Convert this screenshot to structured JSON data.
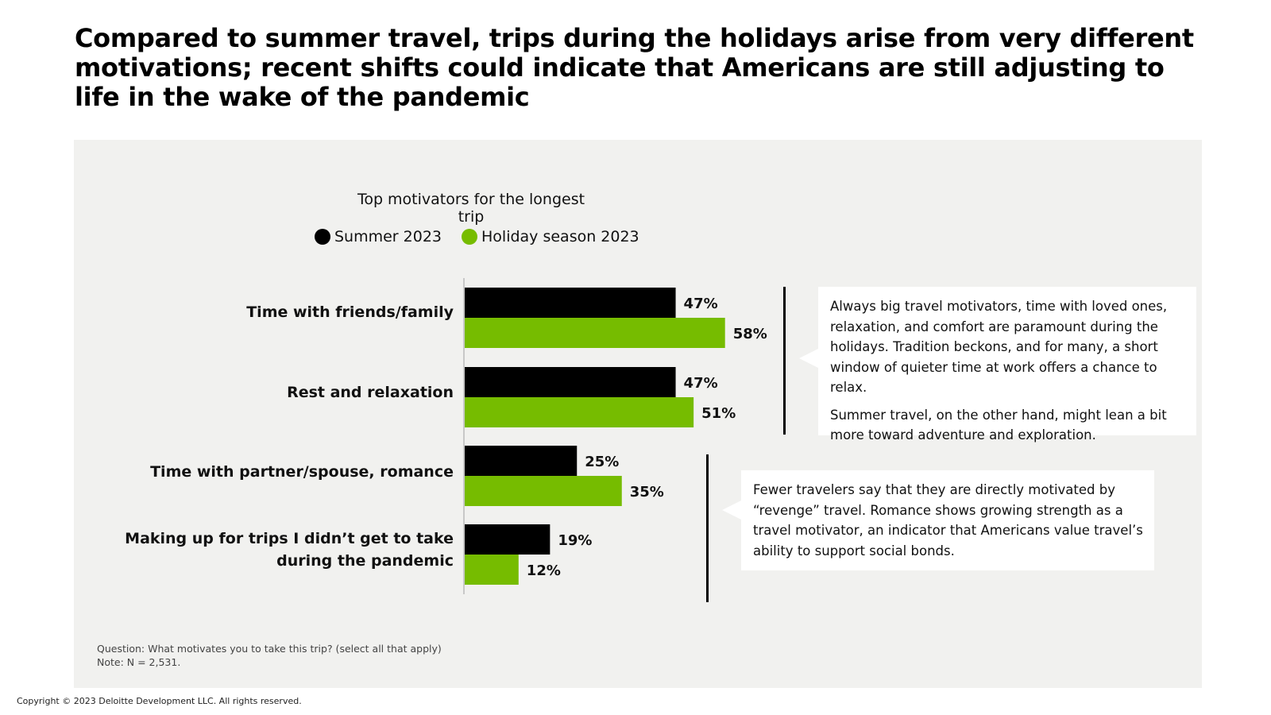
{
  "headline": "Compared to summer travel, trips during the holidays arise from very different motivations; recent shifts could indicate that Americans are still adjusting to life in the wake of the pandemic",
  "chart_data": {
    "type": "bar",
    "orientation": "horizontal",
    "title": "Top motivators for the longest trip",
    "categories": [
      "Time with friends/family",
      "Rest and relaxation",
      "Time with partner/spouse, romance",
      "Making up for trips I didn’t get to take during the pandemic"
    ],
    "series": [
      {
        "name": "Summer 2023",
        "color": "#000000",
        "values": [
          47,
          47,
          25,
          19
        ],
        "labels": [
          "47%",
          "47%",
          "25%",
          "19%"
        ]
      },
      {
        "name": "Holiday season 2023",
        "color": "#76bc00",
        "values": [
          58,
          51,
          35,
          12
        ],
        "labels": [
          "58%",
          "51%",
          "35%",
          "12%"
        ]
      }
    ],
    "legend_position": "top",
    "grid": false
  },
  "callouts": [
    {
      "paragraphs": [
        "Always big travel motivators, time with loved ones, relaxation, and comfort are paramount during the holidays. Tradition beckons, and for many, a short window of quieter time at work offers a chance to relax.",
        "Summer travel, on the other hand, might lean a bit more toward adventure and exploration."
      ]
    },
    {
      "paragraphs": [
        "Fewer travelers say that they are directly motivated by “revenge” travel. Romance shows growing strength as a travel motivator, an indicator that Americans value travel’s ability to support social bonds."
      ]
    }
  ],
  "footnote": {
    "question": "Question: What motivates you to take this trip? (select all that apply)",
    "note": "Note: N = 2,531."
  },
  "copyright": "Copyright © 2023 Deloitte Development LLC. All rights reserved."
}
